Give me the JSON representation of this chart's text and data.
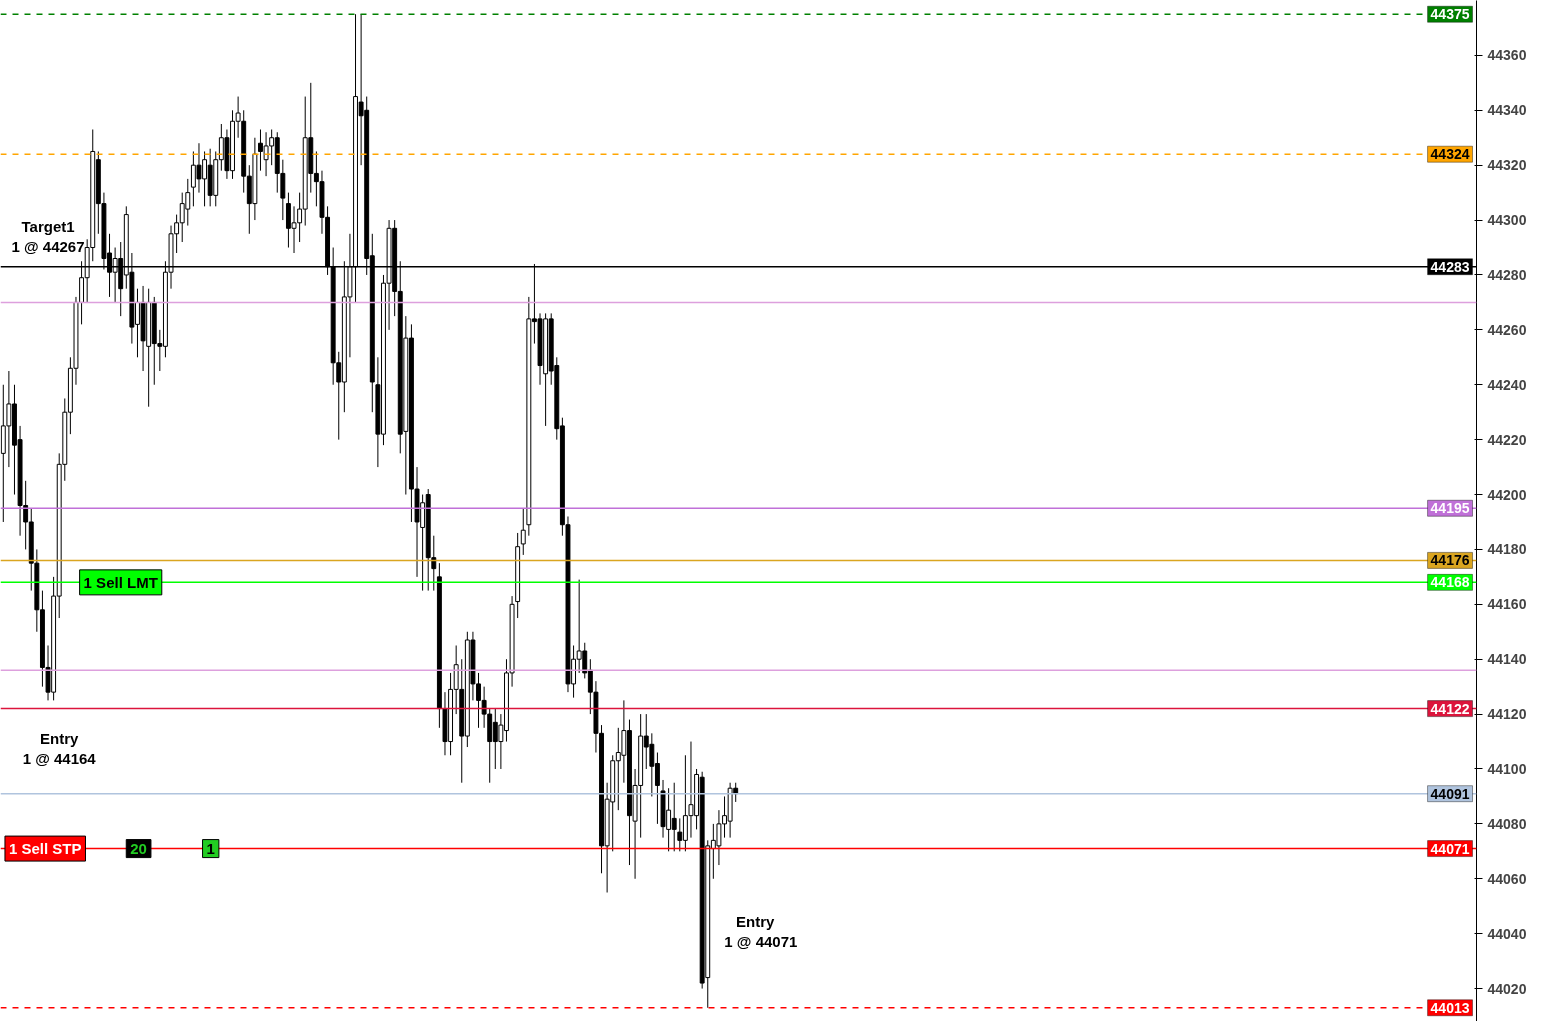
{
  "chart_data": {
    "type": "candlestick",
    "categories": [
      null,
      null,
      null,
      null,
      null,
      null,
      null,
      null,
      null,
      null,
      null,
      null,
      null,
      null,
      null,
      null,
      null,
      null,
      null,
      null,
      null,
      null,
      null,
      null,
      null,
      null,
      null,
      null,
      null,
      null,
      null,
      null,
      null,
      null,
      null,
      null,
      null,
      null,
      null,
      null,
      null,
      null,
      null,
      null,
      null,
      null,
      null,
      null,
      null,
      null,
      null,
      null,
      null,
      null,
      null,
      null,
      null,
      null,
      null,
      null,
      null,
      null,
      null,
      null,
      null,
      null,
      null,
      null,
      null,
      null,
      null,
      null,
      null,
      null,
      null,
      null,
      null,
      null,
      null,
      null,
      null,
      null,
      null,
      null,
      null,
      null,
      null,
      null,
      null,
      null,
      null,
      null,
      null,
      null,
      null,
      null,
      null,
      null,
      null,
      null,
      null,
      null,
      null,
      null,
      null,
      null,
      null,
      null,
      null,
      null,
      null,
      null,
      null,
      null,
      null,
      null,
      null,
      null,
      null,
      null,
      null,
      null,
      null,
      null,
      null,
      null,
      null,
      null,
      null,
      null,
      null,
      null,
      null,
      null,
      null,
      null,
      null,
      null,
      null,
      null,
      null,
      null,
      null,
      null,
      null,
      null,
      null,
      null,
      null,
      null,
      null,
      null,
      null,
      null,
      null,
      null,
      null,
      null,
      null,
      null,
      null,
      null,
      null,
      null,
      null,
      null,
      null,
      null,
      null,
      null,
      null,
      null,
      null,
      null,
      null,
      null,
      null,
      null,
      null,
      null,
      null,
      null,
      null,
      null,
      null,
      null,
      null,
      null,
      null,
      null,
      null,
      null,
      null,
      null,
      null,
      null,
      null,
      null,
      null,
      null,
      null,
      null,
      null,
      null,
      null,
      null,
      null,
      null,
      null,
      null,
      null,
      null,
      null,
      null,
      null,
      null,
      null,
      null,
      null,
      null,
      null,
      null,
      null,
      null,
      null,
      null,
      null,
      null,
      null,
      null,
      null,
      null,
      null,
      null,
      null,
      null,
      null,
      null,
      null,
      null,
      null,
      null,
      null,
      null,
      null,
      null,
      null,
      null,
      null,
      null,
      null,
      null,
      null,
      null,
      null,
      null,
      null,
      null,
      null,
      null,
      null,
      null,
      null,
      null
    ],
    "ohlc": [
      [
        44215,
        44240,
        44190,
        44225
      ],
      [
        44225,
        44245,
        44210,
        44233
      ],
      [
        44233,
        44240,
        44200,
        44218
      ],
      [
        44220,
        44225,
        44185,
        44196
      ],
      [
        44196,
        44205,
        44180,
        44190
      ],
      [
        44190,
        44195,
        44165,
        44175
      ],
      [
        44175,
        44180,
        44150,
        44158
      ],
      [
        44158,
        44165,
        44130,
        44137
      ],
      [
        44137,
        44145,
        44125,
        44128
      ],
      [
        44128,
        44170,
        44125,
        44163
      ],
      [
        44163,
        44215,
        44155,
        44211
      ],
      [
        44211,
        44235,
        44205,
        44230
      ],
      [
        44230,
        44250,
        44222,
        44246
      ],
      [
        44246,
        44272,
        44240,
        44270
      ],
      [
        44270,
        44285,
        44262,
        44279
      ],
      [
        44279,
        44293,
        44270,
        44290
      ],
      [
        44290,
        44333,
        44285,
        44325
      ],
      [
        44322,
        44325,
        44295,
        44306
      ],
      [
        44306,
        44310,
        44282,
        44286
      ],
      [
        44288,
        44295,
        44272,
        44281
      ],
      [
        44281,
        44290,
        44270,
        44286
      ],
      [
        44286,
        44292,
        44265,
        44275
      ],
      [
        44280,
        44305,
        44275,
        44302
      ],
      [
        44281,
        44288,
        44255,
        44261
      ],
      [
        44262,
        44275,
        44250,
        44270
      ],
      [
        44270,
        44276,
        44245,
        44256
      ],
      [
        44254,
        44275,
        44232,
        44270
      ],
      [
        44270,
        44272,
        44240,
        44255
      ],
      [
        44255,
        44260,
        44245,
        44254
      ],
      [
        44254,
        44285,
        44250,
        44281
      ],
      [
        44281,
        44298,
        44275,
        44295
      ],
      [
        44295,
        44302,
        44288,
        44299
      ],
      [
        44299,
        44310,
        44292,
        44306
      ],
      [
        44304,
        44315,
        44298,
        44310
      ],
      [
        44312,
        44325,
        44305,
        44320
      ],
      [
        44320,
        44328,
        44310,
        44315
      ],
      [
        44315,
        44325,
        44305,
        44322
      ],
      [
        44320,
        44326,
        44305,
        44309
      ],
      [
        44309,
        44325,
        44305,
        44322
      ],
      [
        44322,
        44335,
        44318,
        44330
      ],
      [
        44330,
        44333,
        44315,
        44318
      ],
      [
        44318,
        44340,
        44315,
        44336
      ],
      [
        44336,
        44345,
        44330,
        44339
      ],
      [
        44336,
        44340,
        44310,
        44316
      ],
      [
        44316,
        44320,
        44295,
        44306
      ],
      [
        44306,
        44330,
        44300,
        44324
      ],
      [
        44328,
        44333,
        44318,
        44325
      ],
      [
        44322,
        44332,
        44316,
        44327
      ],
      [
        44327,
        44333,
        44320,
        44330
      ],
      [
        44330,
        44332,
        44310,
        44317
      ],
      [
        44317,
        44322,
        44300,
        44308
      ],
      [
        44306,
        44310,
        44290,
        44297
      ],
      [
        44297,
        44305,
        44288,
        44299
      ],
      [
        44299,
        44310,
        44292,
        44304
      ],
      [
        44304,
        44345,
        44298,
        44330
      ],
      [
        44330,
        44350,
        44310,
        44317
      ],
      [
        44317,
        44325,
        44305,
        44314
      ],
      [
        44314,
        44318,
        44295,
        44301
      ],
      [
        44301,
        44305,
        44280,
        44283
      ],
      [
        44283,
        44290,
        44240,
        44248
      ],
      [
        44248,
        44252,
        44220,
        44241
      ],
      [
        44241,
        44285,
        44230,
        44272
      ],
      [
        44272,
        44295,
        44250,
        44283
      ],
      [
        44283,
        44375,
        44270,
        44345
      ],
      [
        44343,
        44375,
        44320,
        44338
      ],
      [
        44340,
        44345,
        44280,
        44286
      ],
      [
        44287,
        44295,
        44230,
        44241
      ],
      [
        44240,
        44250,
        44210,
        44222
      ],
      [
        44222,
        44280,
        44218,
        44277
      ],
      [
        44277,
        44300,
        44260,
        44297
      ],
      [
        44297,
        44300,
        44265,
        44274
      ],
      [
        44274,
        44285,
        44215,
        44222
      ],
      [
        44223,
        44265,
        44200,
        44257
      ],
      [
        44257,
        44262,
        44190,
        44202
      ],
      [
        44202,
        44210,
        44170,
        44190
      ],
      [
        44188,
        44200,
        44165,
        44197
      ],
      [
        44200,
        44202,
        44165,
        44177
      ],
      [
        44177,
        44185,
        44165,
        44173
      ],
      [
        44170,
        44175,
        44115,
        44122
      ],
      [
        44122,
        44128,
        44105,
        44110
      ],
      [
        44110,
        44135,
        44105,
        44129
      ],
      [
        44129,
        44145,
        44120,
        44138
      ],
      [
        44129,
        44140,
        44095,
        44112
      ],
      [
        44112,
        44150,
        44108,
        44147
      ],
      [
        44147,
        44150,
        44125,
        44131
      ],
      [
        44131,
        44135,
        44115,
        44125
      ],
      [
        44125,
        44130,
        44115,
        44120
      ],
      [
        44120,
        44122,
        44095,
        44110
      ],
      [
        44117,
        44122,
        44100,
        44110
      ],
      [
        44110,
        44120,
        44100,
        44116
      ],
      [
        44114,
        44140,
        44110,
        44135
      ],
      [
        44135,
        44163,
        44130,
        44160
      ],
      [
        44161,
        44186,
        44155,
        44181
      ],
      [
        44182,
        44195,
        44178,
        44187
      ],
      [
        44189,
        44272,
        44185,
        44264
      ],
      [
        44264,
        44284,
        44255,
        44263
      ],
      [
        44264,
        44266,
        44240,
        44247
      ],
      [
        44244,
        44266,
        44225,
        44264
      ],
      [
        44264,
        44266,
        44240,
        44245
      ],
      [
        44247,
        44250,
        44220,
        44224
      ],
      [
        44225,
        44228,
        44185,
        44189
      ],
      [
        44189,
        44192,
        44128,
        44131
      ],
      [
        44131,
        44145,
        44126,
        44140
      ],
      [
        44140,
        44169,
        44135,
        44143
      ],
      [
        44143,
        44146,
        44133,
        44135
      ],
      [
        44136,
        44140,
        44120,
        44128
      ],
      [
        44128,
        44132,
        44106,
        44113
      ],
      [
        44113,
        44116,
        44062,
        44072
      ],
      [
        44072,
        44095,
        44055,
        44089
      ],
      [
        44088,
        44105,
        44070,
        44103
      ],
      [
        44103,
        44115,
        44085,
        44106
      ],
      [
        44105,
        44125,
        44095,
        44114
      ],
      [
        44114,
        44118,
        44065,
        44083
      ],
      [
        44081,
        44100,
        44060,
        44094
      ],
      [
        44094,
        44120,
        44075,
        44112
      ],
      [
        44112,
        44120,
        44100,
        44108
      ],
      [
        44109,
        44113,
        44090,
        44101
      ],
      [
        44102,
        44106,
        44080,
        44094
      ],
      [
        44092,
        44096,
        44075,
        44079
      ],
      [
        44078,
        44093,
        44070,
        44085
      ],
      [
        44082,
        44095,
        44070,
        44078
      ],
      [
        44077,
        44082,
        44070,
        44074
      ],
      [
        44074,
        44105,
        44070,
        44083
      ],
      [
        44083,
        44110,
        44075,
        44087
      ],
      [
        44083,
        44100,
        44078,
        44098
      ],
      [
        44097,
        44099,
        44020,
        44022
      ],
      [
        44024,
        44074,
        44013,
        44072
      ],
      [
        44071,
        44080,
        44060,
        44074
      ],
      [
        44072,
        44085,
        44065,
        44080
      ],
      [
        44080,
        44090,
        44075,
        44083
      ],
      [
        44081,
        44095,
        44075,
        44093
      ],
      [
        44093,
        44095,
        44088,
        44091
      ],
      null,
      null,
      null,
      null,
      null,
      null,
      null,
      null,
      null,
      null,
      null,
      null,
      null,
      null,
      null,
      null,
      null,
      null,
      null,
      null,
      null,
      null,
      null,
      null,
      null,
      null,
      null,
      null,
      null,
      null,
      null,
      null,
      null,
      null,
      null,
      null,
      null,
      null,
      null,
      null,
      null,
      null,
      null,
      null,
      null,
      null,
      null,
      null,
      null,
      null,
      null,
      null,
      null,
      null,
      null,
      null,
      null,
      null,
      null,
      null,
      null,
      null,
      null,
      null,
      null,
      null,
      null,
      null,
      null,
      null,
      null,
      null,
      null,
      null,
      null,
      null,
      null,
      null,
      null,
      null,
      null,
      null,
      null,
      null,
      null,
      null,
      null,
      null,
      null,
      null,
      null,
      null,
      null,
      null,
      null,
      null,
      null,
      null,
      null,
      null,
      null,
      null,
      null,
      null,
      null,
      null,
      null,
      null,
      null,
      null,
      null,
      null,
      null,
      null,
      null,
      null,
      null,
      null,
      null,
      null,
      null,
      null,
      null,
      null,
      null,
      null,
      null,
      null,
      null,
      null,
      null,
      null
    ],
    "color": "#000000",
    "ylim": [
      44008,
      44380
    ],
    "yticks": [
      44020,
      44040,
      44060,
      44080,
      44100,
      44120,
      44140,
      44160,
      44180,
      44200,
      44220,
      44240,
      44260,
      44280,
      44300,
      44320,
      44340,
      44360
    ],
    "tick_labels": "y",
    "grid": false,
    "ref_lines": [
      {
        "axis": "y",
        "value": 44375,
        "label": "44375",
        "color": "#008000",
        "line_style": "dashed"
      },
      {
        "axis": "y",
        "value": 44324,
        "label": "44324",
        "color": "#ffa500",
        "line_style": "dashed"
      },
      {
        "axis": "y",
        "value": 44283,
        "label": "44283",
        "color": "#000000"
      },
      {
        "axis": "y",
        "value": 44270,
        "color": "#dda0dd"
      },
      {
        "axis": "y",
        "value": 44195,
        "label": "44195",
        "color": "#c070d8"
      },
      {
        "axis": "y",
        "value": 44176,
        "label": "44176",
        "color": "#daa520"
      },
      {
        "axis": "y",
        "value": 44168,
        "label": "44168",
        "color": "#00ff00"
      },
      {
        "axis": "y",
        "value": 44136,
        "color": "#dda0dd"
      },
      {
        "axis": "y",
        "value": 44122,
        "label": "44122",
        "color": "#dc143c"
      },
      {
        "axis": "y",
        "value": 44091,
        "label": "44091",
        "color": "#b0c4de"
      },
      {
        "axis": "y",
        "value": 44071,
        "label": "44071",
        "color": "#ff0000"
      },
      {
        "axis": "y",
        "value": 44013,
        "label": "44013",
        "color": "#ff0000",
        "line_style": "dashed"
      }
    ],
    "annotations": [
      "Target1",
      "1 @ 44267",
      "Entry",
      "1 @ 44164",
      "Entry",
      "1 @ 44071",
      {
        "text": "1 Sell LMT",
        "y": 44168
      },
      {
        "text": "1 Sell STP",
        "y": 44071
      },
      {
        "text": "20",
        "y": 44071
      },
      {
        "text": "1",
        "y": 44071
      }
    ]
  }
}
